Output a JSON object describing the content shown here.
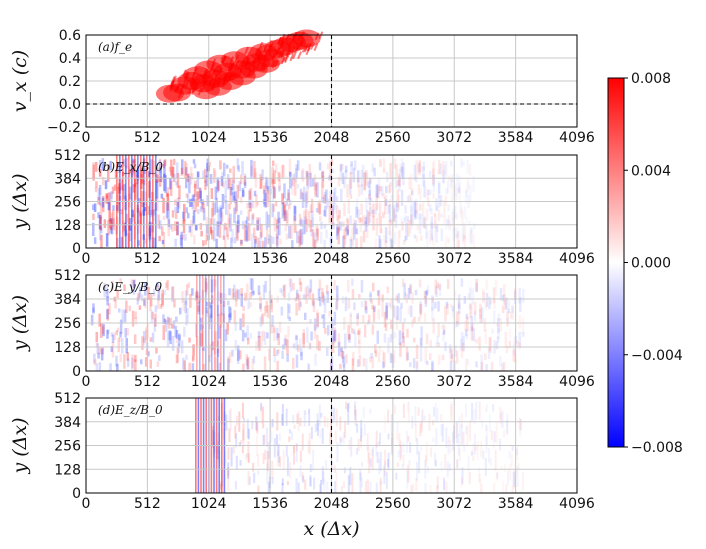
{
  "chart_data": [
    {
      "type": "scatter",
      "panel_label": "(a)f_e",
      "ylabel": "v_x (c)",
      "xlim": [
        0,
        4096
      ],
      "ylim": [
        -0.2,
        0.6
      ],
      "x_ticks": [
        "0",
        "512",
        "1024",
        "1536",
        "2048",
        "2560",
        "3072",
        "3584",
        "4096"
      ],
      "y_ticks": [
        "−0.2",
        "0.0",
        "0.2",
        "0.4",
        "0.6"
      ],
      "grid": true,
      "reference_lines": {
        "vertical_x": 2048,
        "horizontal_y": 0.0
      },
      "color": "#ff0000",
      "points": [
        {
          "x": 700,
          "y": 0.09
        },
        {
          "x": 760,
          "y": 0.1
        },
        {
          "x": 820,
          "y": 0.16
        },
        {
          "x": 880,
          "y": 0.2
        },
        {
          "x": 930,
          "y": 0.25
        },
        {
          "x": 980,
          "y": 0.18
        },
        {
          "x": 1020,
          "y": 0.3
        },
        {
          "x": 1080,
          "y": 0.22
        },
        {
          "x": 1120,
          "y": 0.35
        },
        {
          "x": 1180,
          "y": 0.28
        },
        {
          "x": 1240,
          "y": 0.38
        },
        {
          "x": 1300,
          "y": 0.3
        },
        {
          "x": 1360,
          "y": 0.42
        },
        {
          "x": 1420,
          "y": 0.36
        },
        {
          "x": 1480,
          "y": 0.45
        },
        {
          "x": 1540,
          "y": 0.4
        },
        {
          "x": 1600,
          "y": 0.48
        },
        {
          "x": 1660,
          "y": 0.5
        },
        {
          "x": 1720,
          "y": 0.53
        },
        {
          "x": 1780,
          "y": 0.55
        },
        {
          "x": 1840,
          "y": 0.57
        },
        {
          "x": 1000,
          "y": 0.12
        },
        {
          "x": 1100,
          "y": 0.15
        },
        {
          "x": 1200,
          "y": 0.2
        },
        {
          "x": 1300,
          "y": 0.24
        },
        {
          "x": 1400,
          "y": 0.3
        },
        {
          "x": 1500,
          "y": 0.35
        }
      ]
    },
    {
      "type": "heatmap",
      "panel_label": "(b)E_x/B_0",
      "ylabel": "y (Δx)",
      "xlim": [
        0,
        4096
      ],
      "ylim": [
        0,
        512
      ],
      "x_ticks": [
        "0",
        "512",
        "1024",
        "1536",
        "2048",
        "2560",
        "3072",
        "3584",
        "4096"
      ],
      "y_ticks": [
        "0",
        "128",
        "256",
        "384",
        "512"
      ],
      "grid": true,
      "reference_lines": {
        "vertical_x": 2048
      }
    },
    {
      "type": "heatmap",
      "panel_label": "(c)E_y/B_0",
      "ylabel": "y (Δx)",
      "xlim": [
        0,
        4096
      ],
      "ylim": [
        0,
        512
      ],
      "x_ticks": [
        "0",
        "512",
        "1024",
        "1536",
        "2048",
        "2560",
        "3072",
        "3584",
        "4096"
      ],
      "y_ticks": [
        "0",
        "128",
        "256",
        "384",
        "512"
      ],
      "grid": true,
      "reference_lines": {
        "vertical_x": 2048
      }
    },
    {
      "type": "heatmap",
      "panel_label": "(d)E_z/B_0",
      "ylabel": "y (Δx)",
      "xlabel": "x (Δx)",
      "xlim": [
        0,
        4096
      ],
      "ylim": [
        0,
        512
      ],
      "x_ticks": [
        "0",
        "512",
        "1024",
        "1536",
        "2048",
        "2560",
        "3072",
        "3584",
        "4096"
      ],
      "y_ticks": [
        "0",
        "128",
        "256",
        "384",
        "512"
      ],
      "grid": true,
      "reference_lines": {
        "vertical_x": 2048
      }
    }
  ],
  "colorbar": {
    "range": [
      -0.008,
      0.008
    ],
    "ticks": [
      "0.008",
      "0.004",
      "0.000",
      "−0.004",
      "−0.008"
    ],
    "colormap": "bwr",
    "colors": {
      "max": "#ff0000",
      "mid": "#ffffff",
      "min": "#0000ff"
    }
  }
}
